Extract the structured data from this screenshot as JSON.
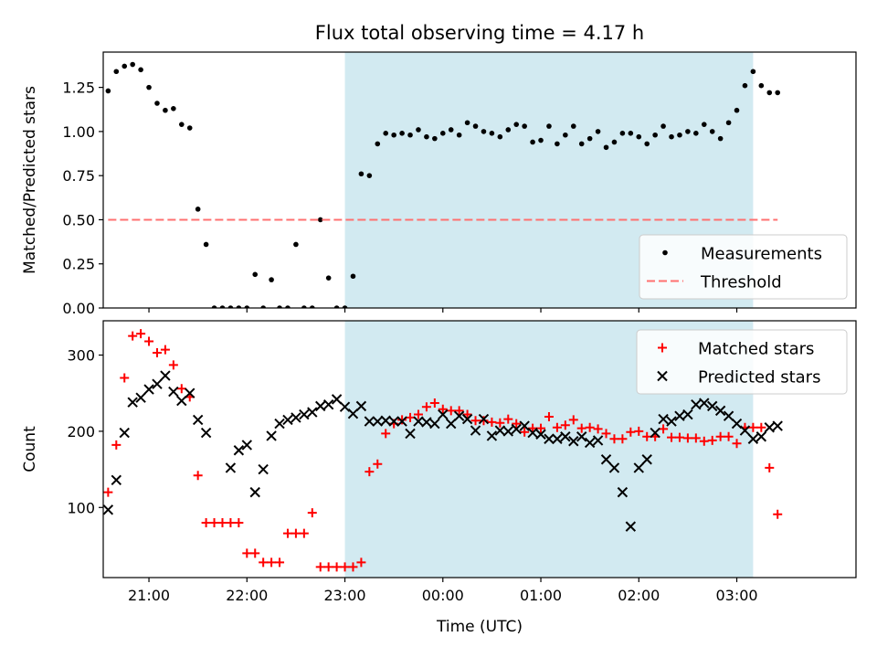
{
  "chart_data": {
    "title": "Flux total observing time = 4.17 h",
    "xlabel": "Time (UTC)",
    "x_ticks": [
      "21:00",
      "22:00",
      "23:00",
      "00:00",
      "01:00",
      "02:00",
      "03:00"
    ],
    "x_range": [
      "20:32",
      "04:13"
    ],
    "shaded_span": [
      "23:00",
      "03:10"
    ],
    "shade_color": "#add8e6",
    "panels": [
      {
        "type": "scatter",
        "ylabel": "Matched/Predicted stars",
        "ylim": [
          0,
          1.45
        ],
        "y_ticks": [
          "0.00",
          "0.25",
          "0.50",
          "0.75",
          "1.00",
          "1.25"
        ],
        "legend": "lower right",
        "series": [
          {
            "name": "Measurements",
            "marker": "dot",
            "color": "#000000",
            "x": [
              "20:35",
              "20:40",
              "20:45",
              "20:50",
              "20:55",
              "21:00",
              "21:05",
              "21:10",
              "21:15",
              "21:20",
              "21:25",
              "21:30",
              "21:35",
              "21:40",
              "21:45",
              "21:50",
              "21:55",
              "22:00",
              "22:05",
              "22:10",
              "22:15",
              "22:20",
              "22:25",
              "22:30",
              "22:35",
              "22:40",
              "22:45",
              "22:50",
              "22:55",
              "23:00",
              "23:05",
              "23:10",
              "23:15",
              "23:20",
              "23:25",
              "23:30",
              "23:35",
              "23:40",
              "23:45",
              "23:50",
              "23:55",
              "00:00",
              "00:05",
              "00:10",
              "00:15",
              "00:20",
              "00:25",
              "00:30",
              "00:35",
              "00:40",
              "00:45",
              "00:50",
              "00:55",
              "01:00",
              "01:05",
              "01:10",
              "01:15",
              "01:20",
              "01:25",
              "01:30",
              "01:35",
              "01:40",
              "01:45",
              "01:50",
              "01:55",
              "02:00",
              "02:05",
              "02:10",
              "02:15",
              "02:20",
              "02:25",
              "02:30",
              "02:35",
              "02:40",
              "02:45",
              "02:50",
              "02:55",
              "03:00",
              "03:05",
              "03:10",
              "03:15",
              "03:20",
              "03:25"
            ],
            "y": [
              1.23,
              1.34,
              1.37,
              1.38,
              1.35,
              1.25,
              1.16,
              1.12,
              1.13,
              1.04,
              1.02,
              0.56,
              0.36,
              0.0,
              0.0,
              0.0,
              0.0,
              0.0,
              0.19,
              0.0,
              0.16,
              0.0,
              0.0,
              0.36,
              0.0,
              0.0,
              0.5,
              0.17,
              0.0,
              0.0,
              0.18,
              0.76,
              0.75,
              0.93,
              0.99,
              0.98,
              0.99,
              0.98,
              1.01,
              0.97,
              0.96,
              0.99,
              1.01,
              0.98,
              1.05,
              1.03,
              1.0,
              0.99,
              0.97,
              1.01,
              1.04,
              1.03,
              0.94,
              0.95,
              1.03,
              0.93,
              0.98,
              1.03,
              0.93,
              0.96,
              1.0,
              0.91,
              0.94,
              0.99,
              0.99,
              0.97,
              0.93,
              0.98,
              1.03,
              0.97,
              0.98,
              1.0,
              0.99,
              1.04,
              1.0,
              0.96,
              1.05,
              1.12,
              1.26,
              1.34,
              1.26,
              1.22,
              1.22
            ]
          },
          {
            "name": "Threshold",
            "marker": "dashed-line",
            "color": "#ff7070",
            "x": [
              "20:35",
              "03:25"
            ],
            "y": [
              0.5,
              0.5
            ]
          }
        ]
      },
      {
        "type": "scatter",
        "ylabel": "Count",
        "ylim": [
          8,
          345
        ],
        "y_ticks": [
          "100",
          "200",
          "300"
        ],
        "legend": "upper right",
        "series": [
          {
            "name": "Matched stars",
            "marker": "plus",
            "color": "#ff0000",
            "x": [
              "20:35",
              "20:40",
              "20:45",
              "20:50",
              "20:55",
              "21:00",
              "21:05",
              "21:10",
              "21:15",
              "21:20",
              "21:25",
              "21:30",
              "21:35",
              "21:40",
              "21:45",
              "21:50",
              "21:55",
              "22:00",
              "22:05",
              "22:10",
              "22:15",
              "22:20",
              "22:25",
              "22:30",
              "22:35",
              "22:40",
              "22:45",
              "22:50",
              "22:55",
              "23:00",
              "23:05",
              "23:10",
              "23:15",
              "23:20",
              "23:25",
              "23:30",
              "23:35",
              "23:40",
              "23:45",
              "23:50",
              "23:55",
              "00:00",
              "00:05",
              "00:10",
              "00:15",
              "00:20",
              "00:25",
              "00:30",
              "00:35",
              "00:40",
              "00:45",
              "00:50",
              "00:55",
              "01:00",
              "01:05",
              "01:10",
              "01:15",
              "01:20",
              "01:25",
              "01:30",
              "01:35",
              "01:40",
              "01:45",
              "01:50",
              "01:55",
              "02:00",
              "02:05",
              "02:10",
              "02:15",
              "02:20",
              "02:25",
              "02:30",
              "02:35",
              "02:40",
              "02:45",
              "02:50",
              "02:55",
              "03:00",
              "03:05",
              "03:10",
              "03:15",
              "03:20",
              "03:25"
            ],
            "y": [
              120,
              182,
              270,
              325,
              328,
              318,
              303,
              307,
              287,
              256,
              245,
              142,
              80,
              80,
              80,
              80,
              80,
              40,
              40,
              28,
              28,
              28,
              66,
              66,
              66,
              93,
              22,
              22,
              22,
              22,
              22,
              28,
              147,
              157,
              197,
              210,
              215,
              218,
              222,
              232,
              237,
              229,
              227,
              227,
              222,
              214,
              214,
              212,
              211,
              216,
              210,
              199,
              204,
              204,
              219,
              205,
              208,
              215,
              204,
              205,
              203,
              197,
              190,
              190,
              199,
              200,
              193,
              193,
              203,
              192,
              192,
              191,
              191,
              187,
              188,
              193,
              193,
              184,
              205,
              205,
              205,
              152,
              91
            ]
          },
          {
            "name": "Predicted stars",
            "marker": "cross",
            "color": "#000000",
            "x": [
              "20:35",
              "20:40",
              "20:45",
              "20:50",
              "20:55",
              "21:00",
              "21:05",
              "21:10",
              "21:15",
              "21:20",
              "21:25",
              "21:30",
              "21:35",
              "21:50",
              "21:55",
              "22:00",
              "22:05",
              "22:10",
              "22:15",
              "22:20",
              "22:25",
              "22:30",
              "22:35",
              "22:40",
              "22:45",
              "22:50",
              "22:55",
              "23:00",
              "23:05",
              "23:10",
              "23:15",
              "23:20",
              "23:25",
              "23:30",
              "23:35",
              "23:40",
              "23:45",
              "23:50",
              "23:55",
              "00:00",
              "00:05",
              "00:10",
              "00:15",
              "00:20",
              "00:25",
              "00:30",
              "00:35",
              "00:40",
              "00:45",
              "00:50",
              "00:55",
              "01:00",
              "01:05",
              "01:10",
              "01:15",
              "01:20",
              "01:25",
              "01:30",
              "01:35",
              "01:40",
              "01:45",
              "01:50",
              "01:55",
              "02:00",
              "02:05",
              "02:10",
              "02:15",
              "02:20",
              "02:25",
              "02:30",
              "02:35",
              "02:40",
              "02:45",
              "02:50",
              "02:55",
              "03:00",
              "03:05",
              "03:10",
              "03:15",
              "03:20",
              "03:25"
            ],
            "y": [
              97,
              136,
              198,
              238,
              244,
              255,
              262,
              273,
              252,
              240,
              250,
              215,
              198,
              152,
              175,
              182,
              120,
              150,
              194,
              210,
              215,
              218,
              222,
              225,
              233,
              235,
              242,
              232,
              223,
              233,
              213,
              213,
              214,
              213,
              213,
              197,
              213,
              212,
              210,
              222,
              210,
              220,
              216,
              201,
              216,
              194,
              201,
              200,
              203,
              207,
              198,
              196,
              190,
              190,
              193,
              187,
              193,
              185,
              188,
              163,
              152,
              120,
              75,
              152,
              163,
              198,
              216,
              213,
              220,
              222,
              235,
              237,
              233,
              227,
              220,
              210,
              201,
              190,
              193,
              205,
              207
            ]
          }
        ]
      }
    ]
  }
}
